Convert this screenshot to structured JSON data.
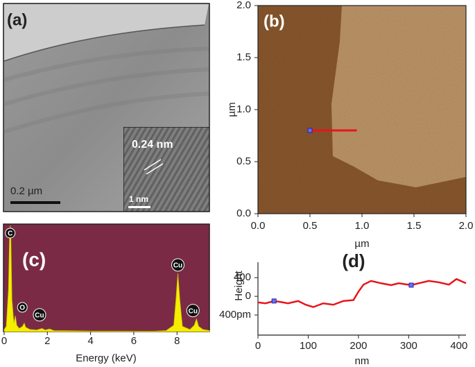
{
  "chart_data": [
    {
      "type": "image",
      "label": "(a)",
      "scale_bar": "0.2 µm",
      "inset": {
        "label": "0.24 nm",
        "scale_bar": "1 nm"
      }
    },
    {
      "type": "map",
      "label": "(b)",
      "xlabel": "µm",
      "ylabel": "µm",
      "xlim": [
        0,
        2
      ],
      "ylim": [
        0,
        2
      ],
      "xticks": [
        {
          "value": 0,
          "label": "0.0"
        },
        0.5,
        {
          "value": 1,
          "label": "1.0"
        },
        1.5,
        {
          "value": 2,
          "label": "2.0"
        }
      ],
      "yticks": [
        {
          "value": 0,
          "label": "0.0"
        },
        0.5,
        {
          "value": 1,
          "label": "1.0"
        },
        1.5,
        {
          "value": 2,
          "label": "2.0"
        }
      ],
      "profile_line": {
        "x": [
          0.5,
          0.95
        ],
        "y": [
          0.8,
          0.8
        ],
        "color": "#e8141b"
      }
    },
    {
      "type": "area",
      "label": "(c)",
      "xlabel": "Energy (keV)",
      "xlim": [
        0,
        9.5
      ],
      "ylim": [
        0,
        100
      ],
      "xticks": [
        0,
        2,
        4,
        6,
        8
      ],
      "color": "#f5ee00",
      "background": "#7b2a45",
      "x": [
        0,
        0.1,
        0.2,
        0.25,
        0.28,
        0.31,
        0.36,
        0.45,
        0.52,
        0.58,
        0.7,
        0.85,
        0.93,
        1.0,
        1.2,
        1.5,
        1.75,
        1.9,
        2.1,
        2.3,
        3,
        4,
        5,
        6,
        7,
        7.5,
        7.85,
        7.95,
        8.04,
        8.13,
        8.25,
        8.6,
        8.8,
        8.9,
        9.0,
        9.2,
        9.5
      ],
      "values": [
        2,
        5,
        40,
        90,
        100,
        90,
        30,
        8,
        15,
        6,
        3,
        5,
        8,
        4,
        2,
        1.5,
        3,
        1.5,
        2.5,
        1,
        0.8,
        0.5,
        0.5,
        0.4,
        0.5,
        1,
        6,
        30,
        55,
        30,
        5,
        2,
        6,
        12,
        5,
        2,
        1
      ],
      "peak_labels": [
        {
          "text": "C",
          "x": 0.28
        },
        {
          "text": "O",
          "x": 0.52
        },
        {
          "text": "Cu",
          "x": 0.93
        },
        {
          "text": "Cu",
          "x": 8.04
        },
        {
          "text": "Cu",
          "x": 8.9
        }
      ]
    },
    {
      "type": "line",
      "label": "(d)",
      "xlabel": "nm",
      "ylabel": "Height",
      "xlim": [
        0,
        414
      ],
      "ylim": [
        -830,
        730
      ],
      "xticks": [
        0,
        100,
        200,
        300,
        400
      ],
      "yticks": [
        {
          "value": -400,
          "label": "400pm"
        },
        0,
        400
      ],
      "color": "#e8141b",
      "x": [
        0,
        15,
        32,
        45,
        60,
        80,
        95,
        110,
        130,
        150,
        170,
        190,
        200,
        210,
        225,
        245,
        265,
        280,
        305,
        320,
        340,
        360,
        380,
        395,
        414
      ],
      "values": [
        -130,
        -150,
        -100,
        -120,
        -150,
        -100,
        -180,
        -230,
        -150,
        -180,
        -100,
        -80,
        100,
        250,
        330,
        280,
        240,
        280,
        240,
        280,
        330,
        300,
        250,
        370,
        280
      ],
      "cursors_x": [
        32,
        305
      ]
    }
  ]
}
